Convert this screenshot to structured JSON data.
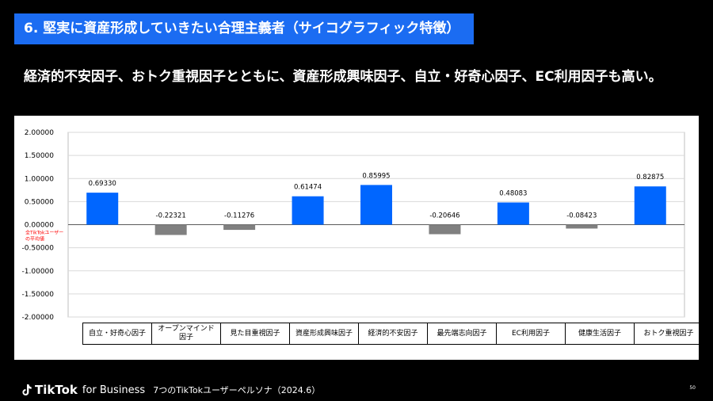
{
  "header": {
    "title": "6. 堅実に資産形成していきたい合理主義者（サイコグラフィック特徴）",
    "subtitle": "経済的不安因子、おトク重視因子とともに、資産形成興味因子、自立・好奇心因子、EC利用因子も高い。"
  },
  "chart_data": {
    "type": "bar",
    "categories": [
      "自立・好奇心因子",
      "オープンマインド\n因子",
      "見た目重視因子",
      "資産形成興味因子",
      "経済的不安因子",
      "最先端志向因子",
      "EC利用因子",
      "健康生活因子",
      "おトク重視因子"
    ],
    "values": [
      0.6933,
      -0.22321,
      -0.11276,
      0.61474,
      0.85995,
      -0.20646,
      0.48083,
      -0.08423,
      0.82875
    ],
    "value_labels": [
      "0.69330",
      "-0.22321",
      "-0.11276",
      "0.61474",
      "0.85995",
      "-0.20646",
      "0.48083",
      "-0.08423",
      "0.82875"
    ],
    "ylim": [
      -2.0,
      2.0
    ],
    "yticks": [
      "2.00000",
      "1.50000",
      "1.00000",
      "0.50000",
      "0.00000",
      "-0.50000",
      "-1.00000",
      "-1.50000",
      "-2.00000"
    ],
    "baseline_label": [
      "全TikTokユーザー",
      "の平均値"
    ],
    "positive_color": "#0066ff",
    "negative_color": "#808080",
    "baseline_label_color": "#ff0000",
    "grid": true
  },
  "footer": {
    "brand": "TikTok",
    "brand_sub": "for Business",
    "note": "7つのTikTokユーザーペルソナ（2024.6）",
    "page_number": "50"
  },
  "colors": {
    "accent": "#1b6cf2",
    "background": "#000000"
  }
}
